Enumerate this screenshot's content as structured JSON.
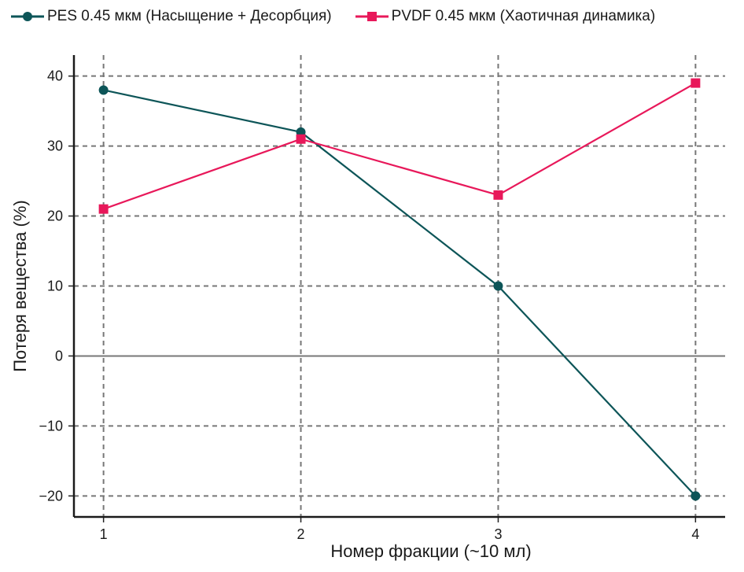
{
  "chart_data": {
    "type": "line",
    "xlabel": "Номер фракции (~10 мл)",
    "ylabel": "Потеря вещества (%)",
    "x": [
      1,
      2,
      3,
      4
    ],
    "xlim": [
      0.85,
      4.15
    ],
    "ylim": [
      -23,
      43
    ],
    "yticks": [
      40,
      30,
      20,
      10,
      0,
      -10,
      -20
    ],
    "ytick_labels": [
      "40",
      "30",
      "20",
      "10",
      "0",
      "−10",
      "−20"
    ],
    "xticks": [
      1,
      2,
      3,
      4
    ],
    "xtick_labels": [
      "1",
      "2",
      "3",
      "4"
    ],
    "grid": true,
    "legend_position": "top",
    "series": [
      {
        "name": "PES 0.45 мкм (Насыщение + Десорбция)",
        "values": [
          38,
          32,
          10,
          -20
        ],
        "color": "#0d5558",
        "marker": "circle"
      },
      {
        "name": "PVDF 0.45 мкм (Хаотичная динамика)",
        "values": [
          21,
          31,
          23,
          39
        ],
        "color": "#e8185a",
        "marker": "square"
      }
    ]
  }
}
